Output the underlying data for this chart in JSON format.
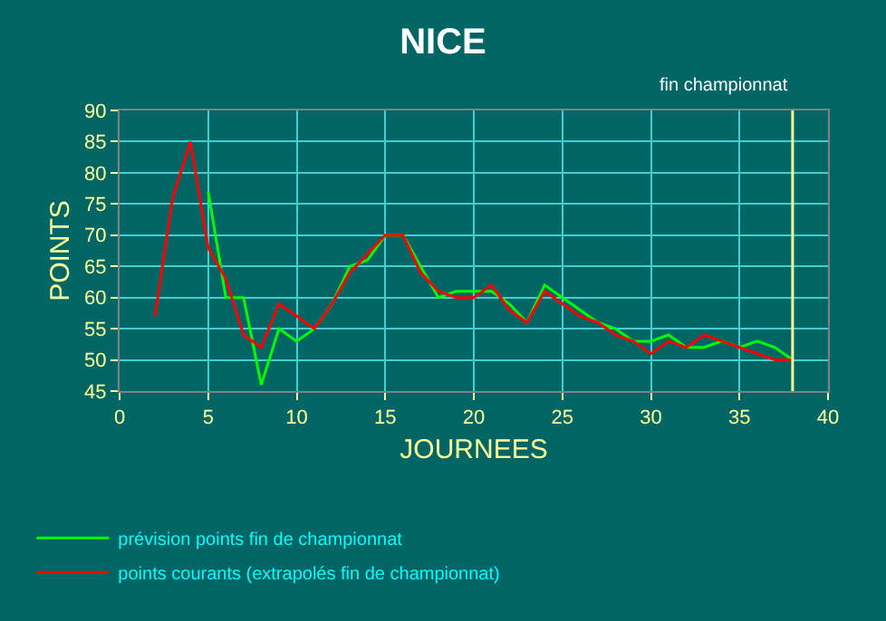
{
  "chart_data": {
    "type": "line",
    "title": "NICE",
    "xlabel": "JOURNEES",
    "ylabel": "POINTS",
    "xlim": [
      0,
      40
    ],
    "xticks": [
      0,
      5,
      10,
      15,
      20,
      25,
      30,
      35,
      40
    ],
    "ylim": [
      45,
      90
    ],
    "yticks": [
      45,
      50,
      55,
      60,
      65,
      70,
      75,
      80,
      85,
      90
    ],
    "grid": true,
    "legend": "bottom left",
    "marker": "none",
    "line_style": "solid",
    "ref_lines": [
      {
        "axis": "x",
        "value": 38,
        "label": "fin championnat",
        "color": "#ffff99"
      }
    ],
    "series": [
      {
        "name": "prévision points fin de championnat",
        "color": "#00ff00",
        "x": [
          5,
          6,
          7,
          8,
          9,
          10,
          11,
          12,
          13,
          14,
          15,
          16,
          17,
          18,
          19,
          20,
          21,
          22,
          23,
          24,
          25,
          26,
          27,
          28,
          29,
          30,
          31,
          32,
          33,
          34,
          35,
          36,
          37,
          38
        ],
        "values": [
          77,
          60,
          60,
          46,
          55,
          53,
          55,
          59,
          65,
          66,
          70,
          70,
          65,
          60,
          61,
          61,
          61,
          59,
          56,
          62,
          60,
          58,
          56,
          55,
          53,
          53,
          54,
          52,
          52,
          53,
          52,
          53,
          52,
          50
        ]
      },
      {
        "name": "points courants (extrapolés fin de championnat)",
        "color": "#ff0000",
        "x": [
          2,
          3,
          4,
          5,
          6,
          7,
          8,
          9,
          10,
          11,
          12,
          13,
          14,
          15,
          16,
          17,
          18,
          19,
          20,
          21,
          22,
          23,
          24,
          25,
          26,
          27,
          28,
          29,
          30,
          31,
          32,
          33,
          34,
          35,
          36,
          37,
          38
        ],
        "values": [
          57,
          76,
          85,
          68,
          63,
          54,
          52,
          59,
          57,
          55,
          59,
          64,
          67,
          70,
          70,
          64,
          61,
          60,
          60,
          62,
          58,
          56,
          61,
          59,
          57,
          56,
          54,
          53,
          51,
          53,
          52,
          54,
          53,
          52,
          51,
          50,
          50
        ]
      }
    ]
  }
}
